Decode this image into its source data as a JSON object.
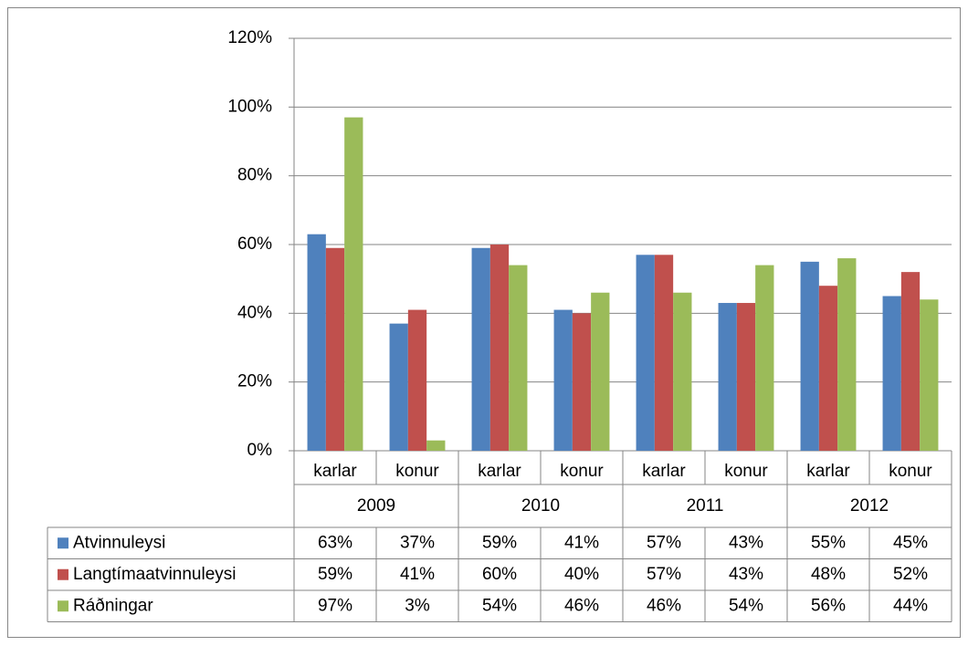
{
  "chart_data": {
    "type": "bar",
    "groups": [
      "2009",
      "2010",
      "2011",
      "2012"
    ],
    "categories": [
      "karlar",
      "konur",
      "karlar",
      "konur",
      "karlar",
      "konur",
      "karlar",
      "konur"
    ],
    "series": [
      {
        "name": "Atvinnuleysi",
        "color": "#4f81bd",
        "values": [
          63,
          37,
          59,
          41,
          57,
          43,
          55,
          45
        ],
        "value_labels": [
          "63%",
          "37%",
          "59%",
          "41%",
          "57%",
          "43%",
          "55%",
          "45%"
        ]
      },
      {
        "name": "Langtímaatvinnuleysi",
        "color": "#c0504d",
        "values": [
          59,
          41,
          60,
          40,
          57,
          43,
          48,
          52
        ],
        "value_labels": [
          "59%",
          "41%",
          "60%",
          "40%",
          "57%",
          "43%",
          "48%",
          "52%"
        ]
      },
      {
        "name": "Ráðningar",
        "color": "#9bbb59",
        "values": [
          97,
          3,
          54,
          46,
          46,
          54,
          56,
          44
        ],
        "value_labels": [
          "97%",
          "3%",
          "54%",
          "46%",
          "46%",
          "54%",
          "56%",
          "44%"
        ]
      }
    ],
    "ylim": [
      0,
      120
    ],
    "yticks": [
      {
        "value": 0,
        "label": "0%"
      },
      {
        "value": 20,
        "label": "20%"
      },
      {
        "value": 40,
        "label": "40%"
      },
      {
        "value": 60,
        "label": "60%"
      },
      {
        "value": 80,
        "label": "80%"
      },
      {
        "value": 100,
        "label": "100%"
      },
      {
        "value": 120,
        "label": "120%"
      }
    ],
    "grid": true
  }
}
